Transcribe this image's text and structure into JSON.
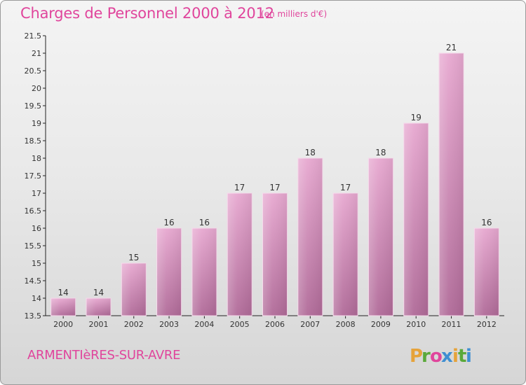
{
  "title": "Charges de Personnel 2000 à 2012",
  "subtitle": "(en milliers d'€)",
  "commune": "ARMENTIèRES-SUR-AVRE",
  "logo_text": "Proxiti",
  "colors": {
    "title": "#e0459c",
    "bar_top": "#e7a8d0",
    "bar_bottom": "#b06a98",
    "logo": [
      "#e6a33a",
      "#5aa93a",
      "#e0459c",
      "#3f8fd1",
      "#e6a33a",
      "#5aa93a",
      "#3f8fd1"
    ]
  },
  "chart_data": {
    "type": "bar",
    "categories": [
      "2000",
      "2001",
      "2002",
      "2003",
      "2004",
      "2005",
      "2006",
      "2007",
      "2008",
      "2009",
      "2010",
      "2011",
      "2012"
    ],
    "values": [
      14,
      14,
      15,
      16,
      16,
      17,
      17,
      18,
      17,
      18,
      19,
      21,
      16
    ],
    "value_labels": [
      "14",
      "14",
      "15",
      "16",
      "16",
      "17",
      "17",
      "18",
      "17",
      "18",
      "19",
      "21",
      "16"
    ],
    "ylim": [
      13.5,
      21.5
    ],
    "yticks": [
      "13.5",
      "14",
      "14.5",
      "15",
      "15.5",
      "16",
      "16.5",
      "17",
      "17.5",
      "18",
      "18.5",
      "19",
      "19.5",
      "20",
      "20.5",
      "21",
      "21.5"
    ],
    "xlabel": "",
    "ylabel": "",
    "grid": false,
    "legend": "none"
  }
}
